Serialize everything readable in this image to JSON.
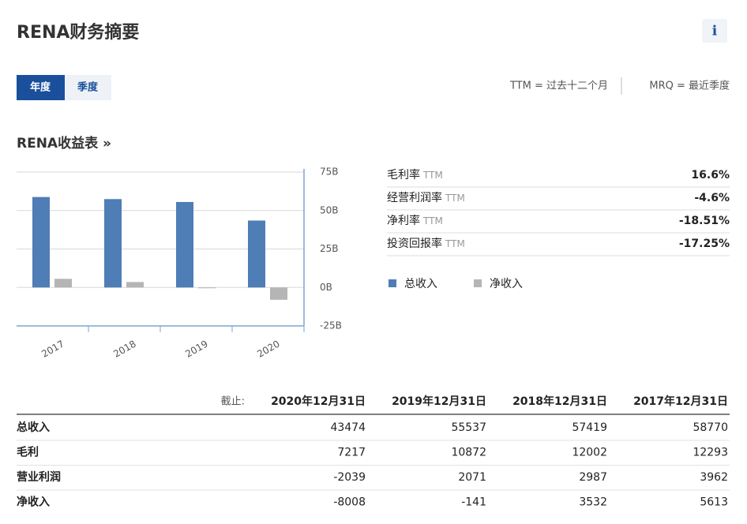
{
  "header": {
    "title": "RENA财务摘要",
    "info": "i"
  },
  "tabs": [
    "年度",
    "季度"
  ],
  "notes": [
    "TTM = 过去十二个月",
    "MRQ = 最近季度"
  ],
  "section_title": "RENA收益表 »",
  "chart_data": {
    "type": "bar",
    "categories": [
      "2017",
      "2018",
      "2019",
      "2020"
    ],
    "series": [
      {
        "name": "总收入",
        "color": "#4f7db5",
        "values": [
          58.77,
          57.42,
          55.54,
          43.47
        ]
      },
      {
        "name": "净收入",
        "color": "#b5b5b5",
        "values": [
          5.61,
          3.53,
          -0.14,
          -8.01
        ]
      }
    ],
    "ylim": [
      -25,
      75
    ],
    "yticks": [
      {
        "value": -25,
        "label": "-25B"
      },
      {
        "value": 0,
        "label": "0B"
      },
      {
        "value": 25,
        "label": "25B"
      },
      {
        "value": 50,
        "label": "50B"
      },
      {
        "value": 75,
        "label": "75B"
      }
    ],
    "grid": true
  },
  "ratios": [
    {
      "label": "毛利率",
      "tag": "TTM",
      "value": "16.6%"
    },
    {
      "label": "经营利润率",
      "tag": "TTM",
      "value": "-4.6%"
    },
    {
      "label": "净利率",
      "tag": "TTM",
      "value": "-18.51%"
    },
    {
      "label": "投资回报率",
      "tag": "TTM",
      "value": "-17.25%"
    }
  ],
  "table": {
    "header": [
      "截止:",
      "2020年12月31日",
      "2019年12月31日",
      "2018年12月31日",
      "2017年12月31日"
    ],
    "rows": [
      [
        "总收入",
        43474,
        55537,
        57419,
        58770
      ],
      [
        "毛利",
        7217,
        10872,
        12002,
        12293
      ],
      [
        "营业利润",
        -2039,
        2071,
        2987,
        3962
      ],
      [
        "净收入",
        -8008,
        -141,
        3532,
        5613
      ]
    ]
  }
}
